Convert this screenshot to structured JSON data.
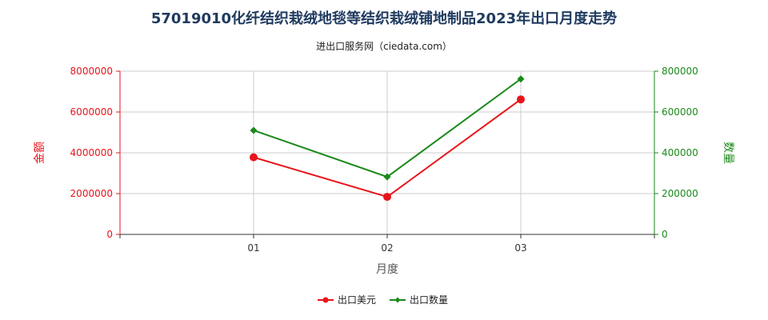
{
  "title": "57019010化纤结织栽绒地毯等结织栽绒铺地制品2023年出口月度走势",
  "subtitle": "进出口服务网（ciedata.com）",
  "chart_data": {
    "type": "line",
    "x": [
      "01",
      "02",
      "03"
    ],
    "xlabel": "月度",
    "grid": true,
    "legend_position": "bottom",
    "left_axis": {
      "label": "金额",
      "range": [
        0,
        8000000
      ],
      "ticks": [
        "0",
        "2000000",
        "4000000",
        "6000000",
        "8000000"
      ],
      "color": "#e8141b"
    },
    "right_axis": {
      "label": "数量",
      "range": [
        0,
        800000
      ],
      "ticks": [
        "0",
        "200000",
        "400000",
        "600000",
        "800000"
      ],
      "color": "#1a8a1a"
    },
    "series": [
      {
        "name": "出口美元",
        "axis": "left",
        "color": "#e8141b",
        "marker": "circle",
        "values": [
          3780000,
          1840000,
          6620000
        ]
      },
      {
        "name": "出口数量",
        "axis": "right",
        "color": "#1a8a1a",
        "marker": "diamond",
        "values": [
          510000,
          282000,
          762000
        ]
      }
    ]
  }
}
